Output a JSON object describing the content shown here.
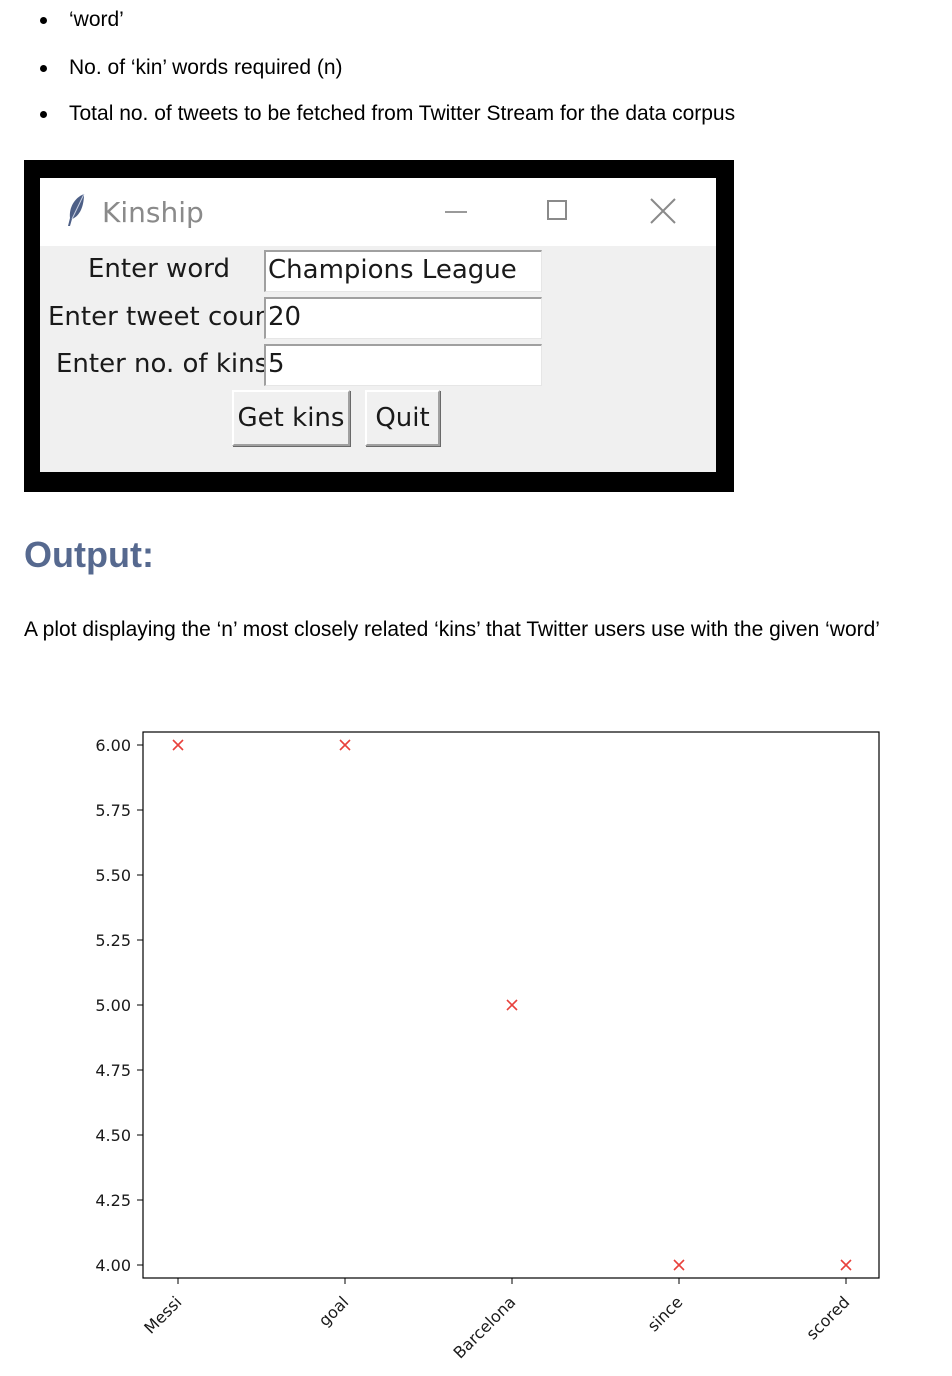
{
  "bullets": [
    "‘word’",
    "No. of ‘kin’ words required (n)",
    "Total no. of tweets to be fetched from Twitter Stream for the data corpus"
  ],
  "window": {
    "title": "Kinship",
    "fields": [
      {
        "label": "Enter word",
        "value": "Champions League"
      },
      {
        "label": "Enter tweet count",
        "value": "20"
      },
      {
        "label": "Enter no. of kins",
        "value": "5"
      }
    ],
    "buttons": {
      "get_kins": "Get kins",
      "quit": "Quit"
    }
  },
  "output": {
    "heading": "Output:",
    "description": "A plot displaying the ‘n’ most closely related ‘kins’ that Twitter users use with the given ‘word’"
  },
  "chart_data": {
    "type": "scatter",
    "categories": [
      "Messi",
      "goal",
      "Barcelona",
      "since",
      "scored"
    ],
    "values": [
      6,
      6,
      5,
      4,
      4
    ],
    "ylim": [
      3.95,
      6.05
    ],
    "yticks": [
      "6.00",
      "5.75",
      "5.50",
      "5.25",
      "5.00",
      "4.75",
      "4.50",
      "4.25",
      "4.00"
    ],
    "marker": "x",
    "marker_color": "#e8413c",
    "grid": false
  }
}
